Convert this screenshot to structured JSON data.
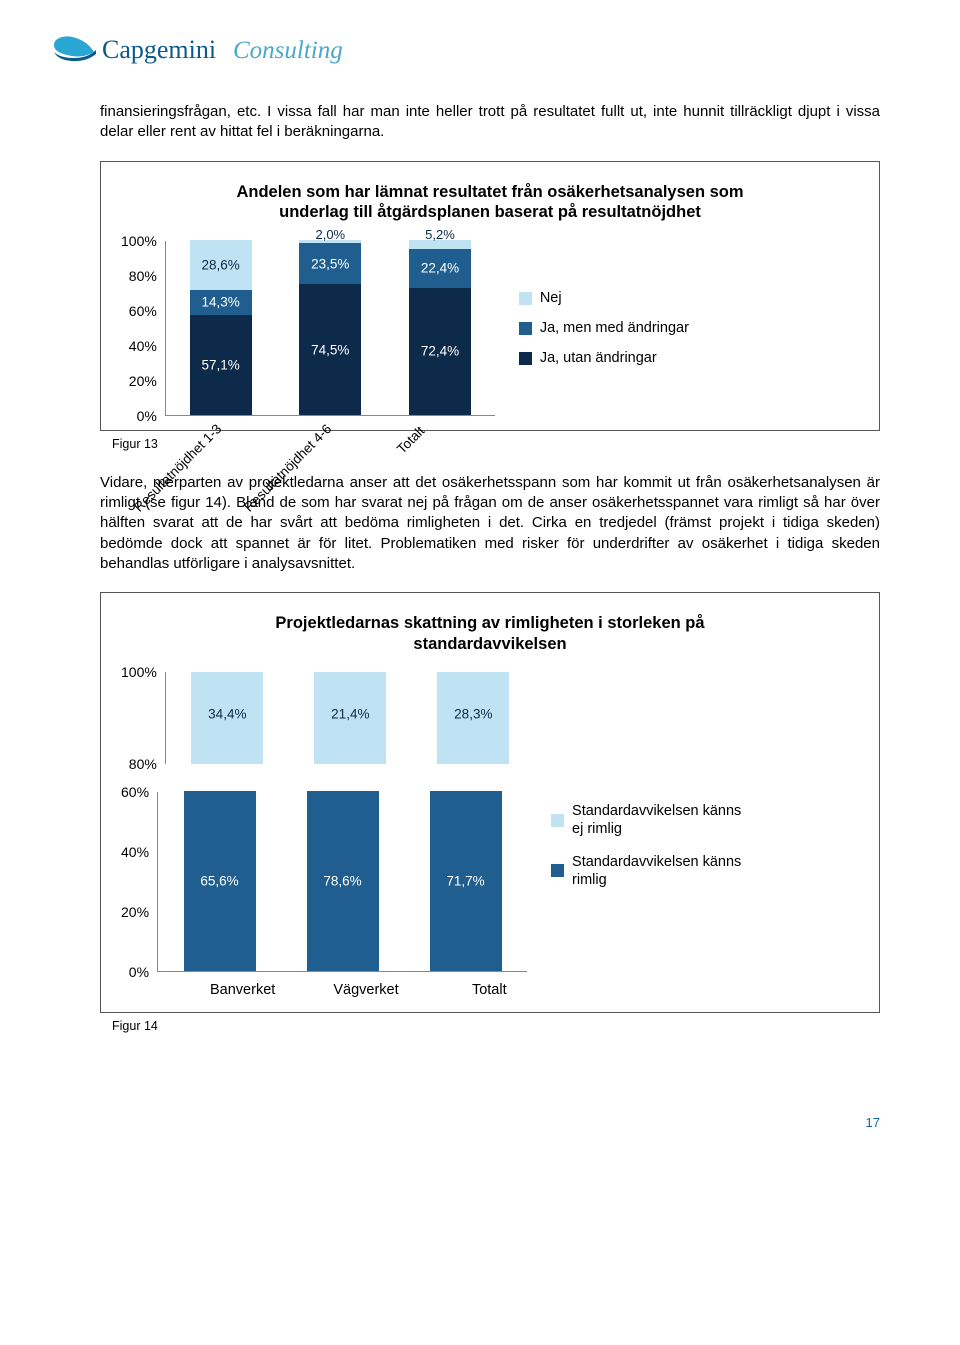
{
  "header": {
    "brand": "Capgemini Consulting"
  },
  "intro_paragraph": "finansieringsfrågan, etc. I vissa fall har man inte heller trott på resultatet fullt ut, inte hunnit tillräckligt djupt i vissa delar eller rent av hittat fel i beräkningarna.",
  "chart1": {
    "title": "Andelen som har lämnat resultatet från osäkerhetsanalysen som underlag till åtgärdsplanen baserat på resultatnöjdhet",
    "type": "stacked-bar-100",
    "y_ticks": [
      "100%",
      "80%",
      "60%",
      "40%",
      "20%",
      "0%"
    ],
    "categories": [
      "Resultatnöjdhet 1-3",
      "Resultatnöjdhet 4-6",
      "Totalt"
    ],
    "series": [
      {
        "key": "nej",
        "label": "Nej",
        "color": "#bfe3f2"
      },
      {
        "key": "ja_med",
        "label": "Ja, men med ändringar",
        "color": "#1f5e8f"
      },
      {
        "key": "ja_utan",
        "label": "Ja, utan ändringar",
        "color": "#0d2a4a"
      }
    ],
    "bars": [
      {
        "nej": {
          "v": 28.6,
          "label": "28,6%"
        },
        "ja_med": {
          "v": 14.3,
          "label": "14,3%"
        },
        "ja_utan": {
          "v": 57.1,
          "label": "57,1%"
        }
      },
      {
        "nej": {
          "v": 2.0,
          "label": "2,0%"
        },
        "ja_med": {
          "v": 23.5,
          "label": "23,5%"
        },
        "ja_utan": {
          "v": 74.5,
          "label": "74,5%"
        }
      },
      {
        "nej": {
          "v": 5.2,
          "label": "5,2%"
        },
        "ja_med": {
          "v": 22.4,
          "label": "22,4%"
        },
        "ja_utan": {
          "v": 72.4,
          "label": "72,4%"
        }
      }
    ],
    "caption": "Figur 13"
  },
  "mid_paragraph": "Vidare, merparten av projektledarna anser att det osäkerhetsspann som har kommit ut från osäkerhetsanalysen är rimligt (se figur 14). Bland de som har svarat nej på frågan om de anser osäkerhetsspannet vara rimligt så har över hälften svarat att de har svårt att bedöma rimligheten i det. Cirka en tredjedel (främst projekt i tidiga skeden) bedömde dock att spannet är för litet. Problematiken med risker för underdrifter av osäkerhet i tidiga skeden behandlas utförligare i analysavsnittet.",
  "chart2": {
    "title": "Projektledarnas skattning av rimligheten i storleken på standardavvikelsen",
    "type": "stacked-bar-100-split",
    "y_ticks_upper": [
      "100%",
      "80%"
    ],
    "y_ticks_lower": [
      "60%",
      "40%",
      "20%",
      "0%"
    ],
    "categories": [
      "Banverket",
      "Vägverket",
      "Totalt"
    ],
    "series": [
      {
        "key": "ej",
        "label": "Standardavvikelsen känns ej rimlig",
        "color": "#bfe3f2"
      },
      {
        "key": "rimlig",
        "label": "Standardavvikelsen känns rimlig",
        "color": "#1f5e8f"
      }
    ],
    "bars_upper": [
      {
        "ej": {
          "v": 34.4,
          "label": "34,4%"
        }
      },
      {
        "ej": {
          "v": 21.4,
          "label": "21,4%"
        }
      },
      {
        "ej": {
          "v": 28.3,
          "label": "28,3%"
        }
      }
    ],
    "bars_lower": [
      {
        "rimlig": {
          "v": 65.6,
          "label": "65,6%"
        }
      },
      {
        "rimlig": {
          "v": 78.6,
          "label": "78,6%"
        }
      },
      {
        "rimlig": {
          "v": 71.7,
          "label": "71,7%"
        }
      }
    ],
    "caption": "Figur 14"
  },
  "page_number": "17"
}
